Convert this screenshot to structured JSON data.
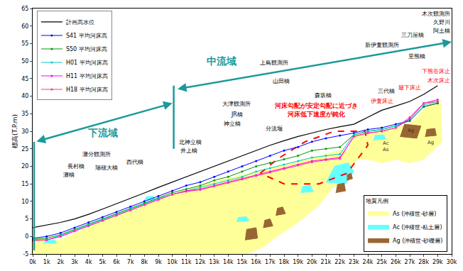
{
  "chart_data": {
    "type": "line",
    "y_label": "標高(T.P.m)",
    "x": [
      0,
      1,
      2,
      3,
      4,
      5,
      6,
      7,
      8,
      9,
      10,
      11,
      12,
      13,
      14,
      15,
      16,
      17,
      18,
      19,
      20,
      21,
      22,
      23,
      24,
      25,
      26,
      27,
      28,
      29
    ],
    "xlim": [
      0,
      30
    ],
    "xticks": [
      {
        "value": 0,
        "label": "0k"
      },
      {
        "value": 1,
        "label": "1k"
      },
      {
        "value": 2,
        "label": "2k"
      },
      {
        "value": 3,
        "label": "3k"
      },
      {
        "value": 4,
        "label": "4k"
      },
      {
        "value": 5,
        "label": "5k"
      },
      {
        "value": 6,
        "label": "6k"
      },
      {
        "value": 7,
        "label": "7k"
      },
      {
        "value": 8,
        "label": "8k"
      },
      {
        "value": 9,
        "label": "9k"
      },
      {
        "value": 10,
        "label": "10k"
      },
      {
        "value": 11,
        "label": "11k"
      },
      {
        "value": 12,
        "label": "12k"
      },
      {
        "value": 13,
        "label": "13k"
      },
      {
        "value": 14,
        "label": "14k"
      },
      {
        "value": 15,
        "label": "15k"
      },
      {
        "value": 16,
        "label": "16k"
      },
      {
        "value": 17,
        "label": "17k"
      },
      {
        "value": 18,
        "label": "18k"
      },
      {
        "value": 19,
        "label": "19k"
      },
      {
        "value": 20,
        "label": "20k"
      },
      {
        "value": 21,
        "label": "21k"
      },
      {
        "value": 22,
        "label": "22k"
      },
      {
        "value": 23,
        "label": "23k"
      },
      {
        "value": 24,
        "label": "24k"
      },
      {
        "value": 25,
        "label": "25k"
      },
      {
        "value": 26,
        "label": "26k"
      },
      {
        "value": 27,
        "label": "27k"
      },
      {
        "value": 28,
        "label": "28k"
      },
      {
        "value": 29,
        "label": "29k"
      },
      {
        "value": 30,
        "label": "30k"
      }
    ],
    "ylim": [
      -5,
      65
    ],
    "yticks": [
      -5,
      0,
      5,
      10,
      15,
      20,
      25,
      30,
      35,
      40,
      45,
      50,
      55,
      60,
      65
    ],
    "grid": false,
    "legend": "upper left",
    "series": [
      {
        "name": "計画高水位",
        "color": "#000000",
        "values": [
          2.5,
          3.2,
          4,
          5,
          6.3,
          7.8,
          9.3,
          10.8,
          12.4,
          14,
          15.5,
          17,
          18.5,
          20,
          21.5,
          23,
          24.5,
          26,
          27.3,
          28.5,
          29.5,
          30.5,
          31.3,
          32,
          34,
          36,
          37.2,
          38.5,
          40.5,
          43
        ]
      },
      {
        "name": "S41 平均河床高",
        "color": "#0000ff",
        "marker": "circle",
        "values": [
          -0.5,
          0,
          1,
          2.5,
          4,
          5.5,
          7,
          8.5,
          10,
          11.5,
          13,
          14.5,
          15.5,
          17,
          18.5,
          20,
          21.5,
          23,
          24.5,
          25.5,
          27,
          28,
          28.8,
          29.5,
          30.5,
          31,
          32,
          33,
          37,
          38
        ]
      },
      {
        "name": "S50 平均河床高",
        "color": "#009900",
        "marker": "circle",
        "values": [
          -0.8,
          -0.5,
          0.5,
          2,
          3.5,
          5,
          6.5,
          8,
          9.5,
          11,
          12.5,
          13.5,
          14.5,
          16,
          17,
          18.5,
          20,
          21,
          22,
          23,
          24.5,
          25,
          25.5,
          29,
          30,
          30.5,
          31.5,
          33,
          37,
          38
        ]
      },
      {
        "name": "H01 平均河床高",
        "color": "#00cccc",
        "marker": "circle",
        "values": [
          -1,
          -1,
          0.3,
          1.8,
          3.3,
          4.8,
          6.3,
          7.8,
          9.2,
          10.8,
          12,
          13,
          14,
          15,
          16,
          17,
          18.5,
          19.5,
          20.5,
          21.5,
          22.5,
          23,
          23.5,
          29,
          30,
          30.5,
          31.5,
          33.5,
          37.5,
          38.5
        ]
      },
      {
        "name": "H11 平均河床高",
        "color": "#ff00ff",
        "marker": "circle",
        "values": [
          -1,
          -1,
          0,
          1.5,
          3,
          4.5,
          6,
          7.5,
          9,
          10.5,
          12,
          13,
          13.5,
          14.5,
          15.5,
          16.5,
          17.5,
          18.5,
          19.5,
          20.5,
          21.5,
          22,
          22.5,
          28.5,
          29.5,
          30,
          31,
          33.5,
          38,
          39
        ]
      },
      {
        "name": "H18 平均河床高",
        "color": "#ff3399",
        "marker": "circle",
        "values": [
          -1.2,
          -1,
          0,
          1.5,
          3,
          4.5,
          6,
          7.5,
          9,
          10.5,
          12,
          12.8,
          13.3,
          14.3,
          15.3,
          16.3,
          17.3,
          18.3,
          19.3,
          20.3,
          21.2,
          21.8,
          22.2,
          28.5,
          29.5,
          30,
          31,
          34,
          38,
          38.5
        ]
      }
    ],
    "geology": {
      "title": "地質凡例",
      "legend": "lower right",
      "layers": [
        {
          "name": "As (沖積世-砂層)",
          "color": "#ffff99",
          "x": [
            0,
            2,
            5,
            8,
            10,
            12,
            14,
            16,
            18,
            20,
            22,
            22.6,
            23,
            24,
            26,
            27,
            28,
            28.5,
            29.2,
            29.3,
            28,
            27,
            26,
            25,
            24,
            23.2,
            22.5,
            21.5,
            20.5,
            19,
            17.5,
            16.5,
            15,
            12,
            0
          ],
          "y": [
            -1,
            -1,
            4.5,
            9,
            12,
            14.5,
            16.5,
            18.5,
            20.5,
            22.5,
            24.5,
            24.5,
            29,
            29.5,
            31,
            32,
            36,
            38,
            38.5,
            27,
            22,
            21,
            22,
            21,
            22,
            22,
            17,
            14,
            9,
            4,
            0,
            -3,
            -5.5,
            -5.5,
            -5.5
          ]
        },
        {
          "name": "Ac (沖積世-粘土層)",
          "color": "#66ffff",
          "x": [
            0.8,
            1.7,
            1.6,
            0.9,
            null,
            8.0,
            8.8,
            8.6,
            8.1,
            null,
            14.6,
            15.5,
            15.3,
            14.7,
            null,
            19.2,
            20.1,
            19.9,
            19.3,
            null,
            21.0,
            22.4,
            23.0,
            22.6,
            21.6,
            null,
            24.4,
            25.3,
            25.1,
            24.5
          ],
          "y": [
            -1.9,
            -1.9,
            -1.1,
            -1.1,
            null,
            10.3,
            10.5,
            11.5,
            11.3,
            null,
            4.2,
            4.5,
            5.6,
            5.4,
            null,
            12.5,
            12.8,
            14.5,
            14.2,
            null,
            15.5,
            15.0,
            18.5,
            21.0,
            20.0,
            null,
            27.5,
            27.8,
            29.0,
            28.8
          ]
        },
        {
          "name": "Ag (沖積世-砂礫層)",
          "color": "#996633",
          "x": [
            15.2,
            16.1,
            16.0,
            15.3,
            null,
            16.5,
            17.2,
            17.0,
            16.6,
            null,
            17.4,
            18.1,
            17.9,
            17.5,
            null,
            21.7,
            22.4,
            22.3,
            21.8,
            null,
            22.5,
            22.9,
            22.8,
            22.5,
            null,
            26.3,
            27.5,
            27.8,
            26.6,
            null,
            28.1,
            28.9,
            28.8,
            28.2
          ],
          "y": [
            -1,
            -0.5,
            2.5,
            2.0,
            null,
            2.5,
            3,
            5,
            4.6,
            null,
            6,
            6.5,
            8.4,
            8,
            null,
            12.5,
            13,
            15.2,
            14.8,
            null,
            16,
            16.5,
            18,
            17.5,
            null,
            28.5,
            28,
            31.5,
            32,
            null,
            28.5,
            28.8,
            30.8,
            30.5
          ]
        }
      ],
      "labels": [
        {
          "text": "Ac",
          "x": 25.3,
          "y": 26.5
        },
        {
          "text": "As",
          "x": 25.3,
          "y": 24.8
        },
        {
          "text": "Ag",
          "x": 27.1,
          "y": 30.2
        },
        {
          "text": "Ag",
          "x": 28.5,
          "y": 26.8
        }
      ]
    },
    "annotations": [
      {
        "text": "灘橋",
        "x": 2.6,
        "y": 17.5,
        "color": "black"
      },
      {
        "text": "長村橋",
        "x": 3.1,
        "y": 20,
        "color": "black"
      },
      {
        "text": "瑞穂大橋",
        "x": 5.3,
        "y": 19.6,
        "color": "black"
      },
      {
        "text": "西代橋",
        "x": 7.3,
        "y": 21.3,
        "color": "black"
      },
      {
        "text": "灘分観測所",
        "x": 4.6,
        "y": 23.5,
        "color": "black"
      },
      {
        "text": "北神立橋",
        "x": 11.3,
        "y": 26.9,
        "color": "black"
      },
      {
        "text": "井上橋",
        "x": 11.2,
        "y": 24.5,
        "color": "black"
      },
      {
        "text": "大津観測所",
        "x": 14.6,
        "y": 37.7,
        "color": "black"
      },
      {
        "text": "JR橋",
        "x": 14.6,
        "y": 34.8,
        "color": "black"
      },
      {
        "text": "神立橋",
        "x": 14.3,
        "y": 32.2,
        "color": "black"
      },
      {
        "text": "分流堰",
        "x": 17.3,
        "y": 30.8,
        "color": "black"
      },
      {
        "text": "山田橋",
        "x": 17.8,
        "y": 44.3,
        "color": "black"
      },
      {
        "text": "森坂橋",
        "x": 20.8,
        "y": 40.3,
        "color": "black"
      },
      {
        "text": "上島観測所",
        "x": 17.3,
        "y": 49.5,
        "color": "black"
      },
      {
        "text": "伊萱床止",
        "x": 25,
        "y": 38.5,
        "color": "red"
      },
      {
        "text": "三代橋",
        "x": 25.3,
        "y": 41.5,
        "color": "black"
      },
      {
        "text": "新伊萱観測所",
        "x": 25,
        "y": 54.5,
        "color": "black"
      },
      {
        "text": "三刀屋橋",
        "x": 27.2,
        "y": 57.5,
        "color": "black"
      },
      {
        "text": "里熊橋",
        "x": 27.5,
        "y": 51.4,
        "color": "black"
      },
      {
        "text": "簸下床止",
        "x": 27,
        "y": 42.5,
        "color": "red"
      },
      {
        "text": "木次床止",
        "x": 30,
        "y": 44.5,
        "color": "red"
      },
      {
        "text": "下熊谷床止",
        "x": 30,
        "y": 47,
        "color": "red"
      },
      {
        "text": "木次観測所",
        "x": 30,
        "y": 63.4,
        "color": "black"
      },
      {
        "text": "久野川",
        "x": 30,
        "y": 61,
        "color": "black"
      },
      {
        "text": "阿土橋",
        "x": 30,
        "y": 58.6,
        "color": "black"
      }
    ],
    "regions": [
      {
        "label": "下流域",
        "color": "#1a9a9a",
        "x": [
          0.2,
          10
        ],
        "y": [
          27,
          38
        ],
        "label_x": 5,
        "label_y": 29.5,
        "boundary": {
          "x": 0.1,
          "y": [
            -4,
            27
          ]
        }
      },
      {
        "label": "中流域",
        "color": "#1a9a9a",
        "x": [
          10.3,
          30
        ],
        "y": [
          42,
          55.5
        ],
        "label_x": 13.5,
        "label_y": 50,
        "boundary": {
          "x": 10.1,
          "y": [
            25,
            43
          ]
        }
      }
    ],
    "highlight": {
      "color": "#ff0000",
      "line_style": "dash",
      "x": [
        16.3,
        17.5,
        19.5,
        21.6,
        23.8,
        24,
        22.5,
        20.5,
        18,
        16.3
      ],
      "y": [
        18,
        22,
        27,
        30,
        30,
        26,
        18,
        15,
        15,
        18
      ],
      "text": [
        "河床勾配が安定勾配に近づき",
        "河床低下速度が鈍化"
      ],
      "text_x": 20.3,
      "text_y": 36
    }
  }
}
